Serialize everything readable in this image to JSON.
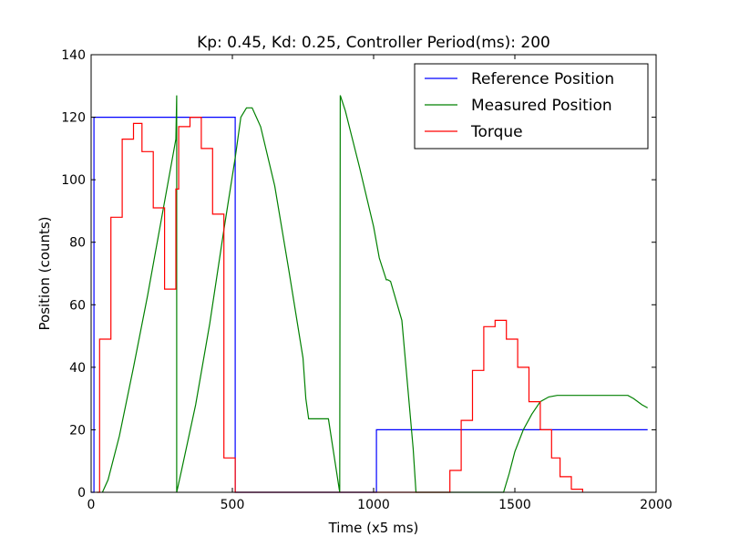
{
  "chart_data": {
    "type": "line",
    "title": "Kp: 0.45, Kd: 0.25, Controller Period(ms): 200",
    "xlabel": "Time (x5 ms)",
    "ylabel": "Position (counts)",
    "xlim": [
      0,
      2000
    ],
    "ylim": [
      0,
      140
    ],
    "xticks": [
      0,
      500,
      1000,
      1500,
      2000
    ],
    "yticks": [
      0,
      20,
      40,
      60,
      80,
      100,
      120,
      140
    ],
    "grid": false,
    "legend_position": "top-right",
    "series": [
      {
        "name": "Reference Position",
        "color": "#0000ff",
        "step": true,
        "x": [
          0,
          10,
          510,
          1010,
          1970
        ],
        "y": [
          0,
          120,
          0,
          20,
          20
        ]
      },
      {
        "name": "Measured Position",
        "color": "#008000",
        "step": false,
        "x": [
          40,
          60,
          100,
          150,
          200,
          250,
          300,
          303,
          303,
          320,
          370,
          420,
          470,
          510,
          530,
          550,
          570,
          600,
          650,
          700,
          750,
          760,
          770,
          800,
          840,
          880,
          882,
          900,
          950,
          1000,
          1020,
          1045,
          1050,
          1060,
          1100,
          1140,
          1150,
          1460,
          1480,
          1500,
          1530,
          1560,
          1590,
          1620,
          1650,
          1700,
          1800,
          1900,
          1920,
          1950,
          1970
        ],
        "y": [
          0,
          4,
          18,
          40,
          63,
          88,
          113,
          127,
          0,
          7,
          28,
          54,
          84,
          107,
          120,
          123,
          123,
          117,
          98,
          71,
          43,
          30,
          23.5,
          23.5,
          23.5,
          0,
          127,
          122,
          104,
          85,
          75,
          68,
          68,
          67.5,
          55,
          14,
          0,
          0,
          6,
          13,
          20,
          25,
          29,
          30.5,
          31,
          31,
          31,
          31,
          30,
          28,
          27
        ]
      },
      {
        "name": "Torque",
        "color": "#ff0000",
        "step": true,
        "x": [
          20,
          30,
          70,
          110,
          150,
          180,
          220,
          260,
          300,
          310,
          350,
          390,
          430,
          470,
          510,
          545,
          1270,
          1310,
          1350,
          1390,
          1430,
          1470,
          1510,
          1550,
          1590,
          1630,
          1660,
          1700,
          1740
        ],
        "y": [
          0,
          49,
          88,
          113,
          118,
          109,
          91,
          65,
          97,
          117,
          120,
          110,
          89,
          11,
          0,
          0,
          7,
          23,
          39,
          53,
          55,
          49,
          40,
          29,
          20,
          11,
          5,
          1,
          0
        ]
      }
    ]
  }
}
